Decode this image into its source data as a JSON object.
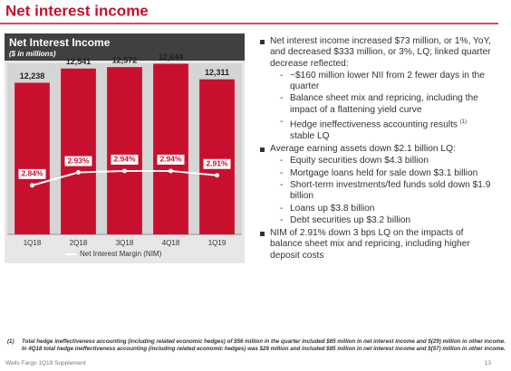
{
  "page_title": "Net interest income",
  "chart_data": {
    "type": "bar",
    "title": "Net Interest Income",
    "subtitle": "($ in millions)",
    "categories": [
      "1Q18",
      "2Q18",
      "3Q18",
      "4Q18",
      "1Q19"
    ],
    "values": [
      12238,
      12541,
      12572,
      12644,
      12311
    ],
    "value_labels": [
      "12,238",
      "12,541",
      "12,572",
      "12,644",
      "12,311"
    ],
    "color": "#c8102e",
    "ylim": [
      9000,
      13000
    ],
    "y2lim": [
      2.5,
      3.8
    ],
    "series": [
      {
        "name": "Net Interest Margin (NIM)",
        "type": "line",
        "axis": "y2",
        "color": "#ffffff",
        "values": [
          2.84,
          2.93,
          2.94,
          2.94,
          2.91
        ],
        "value_labels": [
          "2.84%",
          "2.93%",
          "2.94%",
          "2.94%",
          "2.91%"
        ]
      }
    ],
    "legend": "bottom"
  },
  "bullets": [
    {
      "text": "Net interest income increased $73 million, or 1%, YoY, and decreased $333 million, or 3%, LQ; linked quarter decrease reflected:",
      "sub": [
        {
          "text": "~$160 million lower NII from 2 fewer days in the quarter"
        },
        {
          "text": "Balance sheet mix and repricing, including the impact of a flattening yield curve"
        },
        {
          "text": "Hedge ineffectiveness accounting results",
          "note": "(1)",
          "after": "stable LQ"
        }
      ]
    },
    {
      "text": "Average earning assets down $2.1 billion LQ:",
      "sub": [
        {
          "text": "Equity securities down $4.3 billion"
        },
        {
          "text": "Mortgage loans held for sale down $3.1 billion"
        },
        {
          "text": "Short-term investments/fed funds sold down $1.9 billion"
        },
        {
          "text": "Loans up $3.8 billion"
        },
        {
          "text": "Debt securities up $3.2 billion"
        }
      ]
    },
    {
      "text": "NIM of 2.91% down 3 bps LQ on the impacts of balance sheet mix and repricing, including higher deposit costs",
      "sub": []
    }
  ],
  "footnote": {
    "marker": "(1)",
    "text": "Total hedge ineffectiveness accounting (including related economic hedges) of $56 million in the quarter included $85 million in net interest income and $(29) million in other income. In 4Q18 total hedge ineffectiveness accounting (including related economic hedges) was $28 million and included $85 million in net interest income and $(57) million in other income."
  },
  "footer": {
    "left": "Wells Fargo 1Q19 Supplement",
    "page": "13"
  }
}
